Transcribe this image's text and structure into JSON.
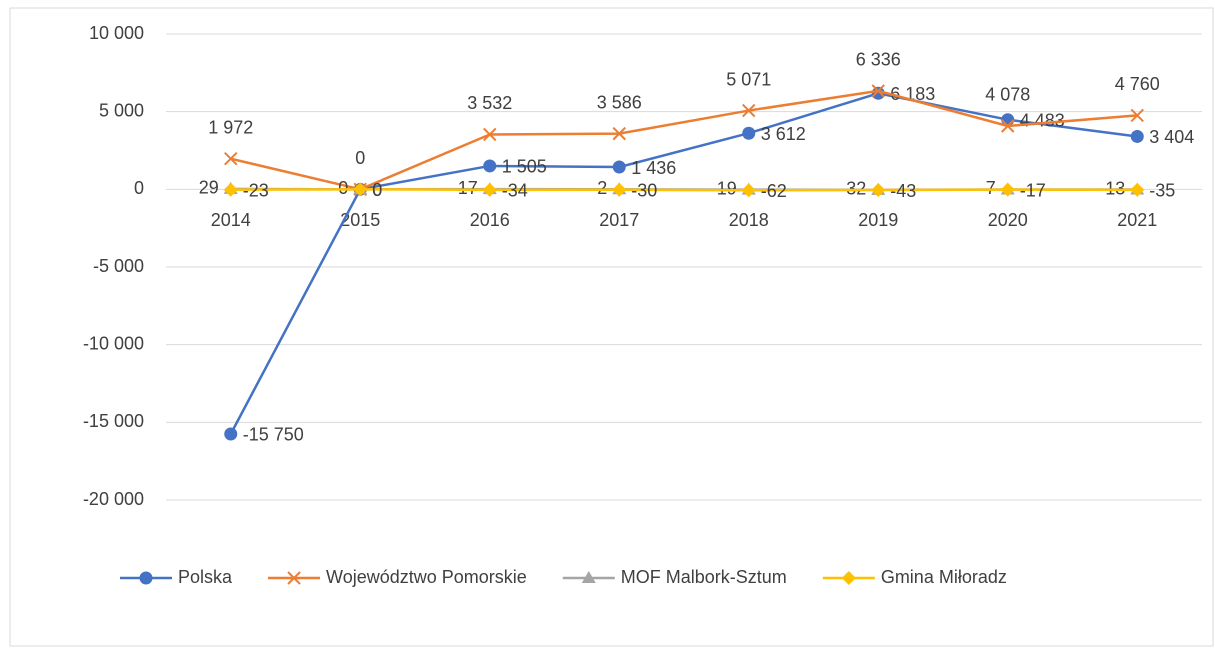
{
  "chart_data": {
    "type": "line",
    "categories": [
      "2014",
      "2015",
      "2016",
      "2017",
      "2018",
      "2019",
      "2020",
      "2021"
    ],
    "series": [
      {
        "name": "Polska",
        "color": "#4472c4",
        "marker": "circle",
        "values": [
          -15750,
          0,
          1505,
          1436,
          3612,
          6183,
          4483,
          3404
        ],
        "value_labels": [
          "-15 750",
          "0",
          "1 505",
          "1 436",
          "3 612",
          "6 183",
          "4 483",
          "3 404"
        ]
      },
      {
        "name": "Województwo Pomorskie",
        "color": "#ed7d31",
        "marker": "x",
        "values": [
          1972,
          0,
          3532,
          3586,
          5071,
          6336,
          4078,
          4760
        ],
        "value_labels": [
          "1 972",
          "0",
          "3 532",
          "3 586",
          "5 071",
          "6 336",
          "4 078",
          "4 760"
        ]
      },
      {
        "name": "MOF Malbork-Sztum",
        "color": "#a5a5a5",
        "marker": "triangle",
        "values": [
          29,
          0,
          17,
          2,
          -19,
          -32,
          -7,
          -13
        ]
      },
      {
        "name": "Gmina Miłoradz",
        "color": "#ffc000",
        "marker": "diamond",
        "values": [
          -23,
          0,
          -34,
          -30,
          -62,
          -43,
          -17,
          -35
        ]
      }
    ],
    "ylim": [
      -20000,
      10000
    ],
    "yticks": [
      {
        "value": -20000,
        "label": "-20 000"
      },
      {
        "value": -15000,
        "label": "-15 000"
      },
      {
        "value": -10000,
        "label": "-10 000"
      },
      {
        "value": -5000,
        "label": "-5 000"
      },
      0,
      {
        "value": 5000,
        "label": "5 000"
      },
      {
        "value": 10000,
        "label": "10 000"
      }
    ],
    "grid": true,
    "legend": "bottom"
  }
}
